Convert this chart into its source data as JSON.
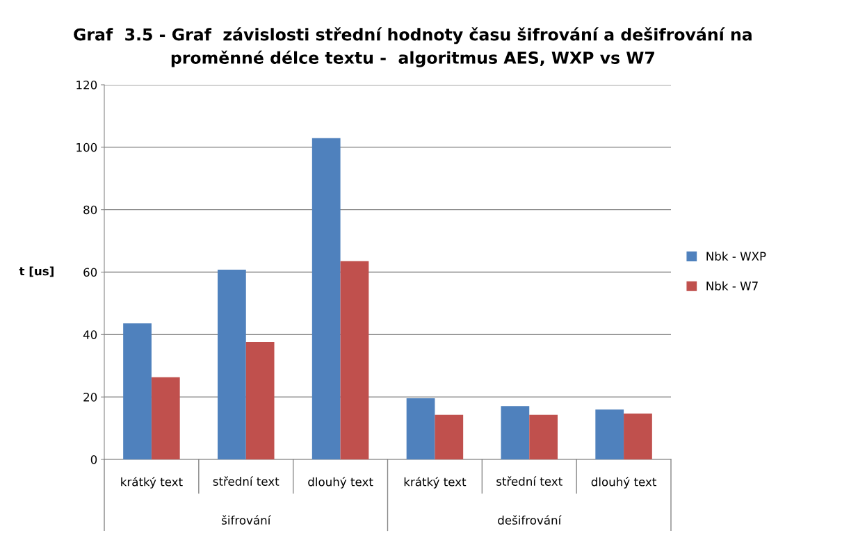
{
  "chart_data": {
    "type": "bar",
    "title": "Graf  3.5 - Graf  závislosti střední hodnoty času šifrování a dešifrování na\nproměnné délce textu -  algoritmus AES, WXP vs W7",
    "ylabel": "t [us]",
    "categories": [
      "krátký text",
      "střední text",
      "dlouhý text",
      "krátký text",
      "střední text",
      "dlouhý text"
    ],
    "series": [
      {
        "name": "Nbk - WXP",
        "color": "#4f81bd",
        "values": [
          43.6,
          60.8,
          102.9,
          19.6,
          17.1,
          16.0
        ]
      },
      {
        "name": "Nbk - W7",
        "color": "#c0504d",
        "values": [
          26.3,
          37.6,
          63.5,
          14.3,
          14.3,
          14.7
        ]
      }
    ],
    "annotations": [
      "šifrování",
      "dešifrování"
    ],
    "ylim": [
      0,
      120
    ],
    "yticks": [
      0,
      20,
      40,
      60,
      80,
      100,
      120
    ],
    "grid": "y",
    "legend": "right"
  }
}
